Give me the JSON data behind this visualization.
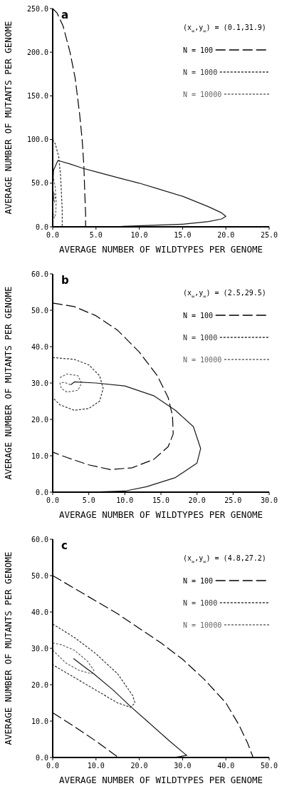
{
  "chart_data": [
    {
      "type": "line",
      "title": "a",
      "xlabel": "AVERAGE NUMBER OF WILDTYPES PER GENOME",
      "ylabel": "AVERAGE NUMBER OF MUTANTS PER GENOME",
      "annotations": [
        "(x$_{∞}$,y$_{∞}$) = (0.1,31.9)"
      ],
      "xlim": [
        0,
        25
      ],
      "ylim": [
        0,
        250
      ],
      "xticks": [
        {
          "value": 0,
          "label": "0.0"
        },
        {
          "value": 5,
          "label": "5.0"
        },
        {
          "value": 10,
          "label": "10.0"
        },
        {
          "value": 15,
          "label": "15.0"
        },
        {
          "value": 20,
          "label": "20.0"
        },
        {
          "value": 25,
          "label": "25.0"
        }
      ],
      "yticks": [
        {
          "value": 0,
          "label": "0.0"
        },
        {
          "value": 50,
          "label": "50.0"
        },
        {
          "value": 100,
          "label": "100.0"
        },
        {
          "value": 150,
          "label": "150.0"
        },
        {
          "value": 200,
          "label": "200.0"
        },
        {
          "value": 250,
          "label": "250.0"
        }
      ],
      "legend": "top right",
      "grid": false,
      "marker": "none",
      "series": [
        {
          "name": "N = 100",
          "color": "#000000",
          "line_style": "dashed",
          "x": [
            0,
            0.5,
            1.2,
            2,
            2.6,
            3.1,
            3.4,
            3.6,
            3.7,
            3.8,
            3.8
          ],
          "values": [
            250,
            245,
            230,
            200,
            170,
            130,
            100,
            70,
            40,
            15,
            0
          ]
        },
        {
          "name": "N = 1000",
          "color": "#333333",
          "line_style": "dotted",
          "x": [
            0,
            0.3,
            0.7,
            0.9,
            1,
            1.1,
            1.1
          ],
          "values": [
            100,
            95,
            80,
            60,
            40,
            20,
            0
          ]
        },
        {
          "name": "N = 10000",
          "color": "#666666",
          "line_style": "dotted",
          "x": [
            0.1,
            0.3,
            0.4,
            0.35,
            0.2,
            0.05,
            0,
            0.1,
            0.3,
            0.2,
            0.1
          ],
          "values": [
            55,
            45,
            30,
            15,
            10,
            15,
            30,
            40,
            35,
            28,
            32
          ]
        },
        {
          "color": "#1a1a1a",
          "line_style": "solid",
          "x": [
            0.1,
            0,
            0.1,
            0.6,
            2,
            3.5,
            5,
            8,
            10,
            12,
            15,
            18,
            19.5,
            20,
            19.5,
            18,
            15,
            12,
            8,
            4,
            0
          ],
          "values": [
            32,
            45,
            65,
            76,
            72,
            67,
            63,
            55,
            50,
            44,
            35,
            23,
            16,
            12,
            9,
            6,
            3,
            2,
            0.5,
            0,
            0
          ]
        }
      ]
    },
    {
      "type": "line",
      "title": "b",
      "xlabel": "AVERAGE NUMBER OF WILDTYPES PER GENOME",
      "ylabel": "AVERAGE NUMBER OF MUTANTS PER GENOME",
      "annotations": [
        "(x$_{∞}$,y$_{∞}$) = (2.5,29.5)"
      ],
      "xlim": [
        0,
        30
      ],
      "ylim": [
        0,
        60
      ],
      "xticks": [
        {
          "value": 0,
          "label": "0.0"
        },
        {
          "value": 5,
          "label": "5.0"
        },
        {
          "value": 10,
          "label": "10.0"
        },
        {
          "value": 15,
          "label": "15.0"
        },
        {
          "value": 20,
          "label": "20.0"
        },
        {
          "value": 25,
          "label": "25.0"
        },
        {
          "value": 30,
          "label": "30.0"
        }
      ],
      "yticks": [
        {
          "value": 0,
          "label": "0.0"
        },
        {
          "value": 10,
          "label": "10.0"
        },
        {
          "value": 20,
          "label": "20.0"
        },
        {
          "value": 30,
          "label": "30.0"
        },
        {
          "value": 40,
          "label": "40.0"
        },
        {
          "value": 50,
          "label": "50.0"
        },
        {
          "value": 60,
          "label": "60.0"
        }
      ],
      "legend": "top right",
      "grid": false,
      "marker": "none",
      "series": [
        {
          "name": "N = 100",
          "color": "#000000",
          "line_style": "dashed",
          "x": [
            0,
            3,
            6,
            9,
            12,
            14.5,
            16,
            16.6,
            16.7,
            16,
            14,
            11,
            8,
            5,
            2,
            0
          ],
          "values": [
            52,
            51,
            48.5,
            44.5,
            38.5,
            32,
            26,
            21,
            16,
            12.5,
            9,
            6.7,
            6.2,
            7.5,
            9.5,
            11
          ]
        },
        {
          "name": "N = 1000",
          "color": "#333333",
          "line_style": "dotted",
          "x": [
            0,
            3,
            5,
            6.5,
            7,
            6.5,
            5,
            3,
            1,
            0
          ],
          "values": [
            37,
            36.5,
            35,
            32,
            28.5,
            25,
            23,
            22.5,
            24,
            26
          ]
        },
        {
          "name": "N = 10000",
          "color": "#666666",
          "line_style": "dotted",
          "x": [
            1,
            2,
            3.5,
            4,
            3.5,
            2,
            1.2,
            1,
            1.6,
            2.5
          ],
          "values": [
            31.5,
            32.5,
            32,
            30,
            28,
            27.5,
            28.5,
            30,
            30.2,
            29.5
          ]
        },
        {
          "color": "#1a1a1a",
          "line_style": "solid",
          "x": [
            2.5,
            3,
            6,
            10,
            14,
            17,
            19.5,
            20.5,
            20,
            17,
            13,
            10,
            5,
            0
          ],
          "values": [
            29.5,
            30.3,
            30,
            29.2,
            26.5,
            22.5,
            18,
            12,
            8,
            4,
            1.5,
            0.3,
            0,
            0
          ]
        }
      ]
    },
    {
      "type": "line",
      "title": "c",
      "xlabel": "AVERAGE NUMBER OF WILDTYPES PER GENOME",
      "ylabel": "AVERAGE NUMBER OF MUTANTS PER GENOME",
      "annotations": [
        "(x$_{∞}$,y$_{∞}$) = (4.8,27.2)"
      ],
      "xlim": [
        0,
        50
      ],
      "ylim": [
        0,
        60
      ],
      "xticks": [
        {
          "value": 0,
          "label": "0.0"
        },
        {
          "value": 10,
          "label": "10.0"
        },
        {
          "value": 20,
          "label": "20.0"
        },
        {
          "value": 30,
          "label": "30.0"
        },
        {
          "value": 40,
          "label": "40.0"
        },
        {
          "value": 50,
          "label": "50.0"
        }
      ],
      "yticks": [
        {
          "value": 0,
          "label": "0.0"
        },
        {
          "value": 10,
          "label": "10.0"
        },
        {
          "value": 20,
          "label": "20.0"
        },
        {
          "value": 30,
          "label": "30.0"
        },
        {
          "value": 40,
          "label": "40.0"
        },
        {
          "value": 50,
          "label": "50.0"
        },
        {
          "value": 60,
          "label": "60.0"
        }
      ],
      "legend": "top right",
      "grid": false,
      "marker": "none",
      "series": [
        {
          "name": "N = 100",
          "color": "#000000",
          "line_style": "dashed",
          "x": [
            0,
            5,
            10,
            15,
            20,
            25,
            30,
            35,
            40,
            43,
            45,
            46.3,
            null,
            0,
            5,
            10,
            15.2
          ],
          "values": [
            50,
            46.5,
            43,
            39.5,
            35.5,
            31.5,
            27,
            21.5,
            15,
            9,
            4,
            0,
            null,
            12.3,
            8.5,
            4.5,
            0
          ]
        },
        {
          "name": "N = 1000",
          "color": "#333333",
          "line_style": "dotted",
          "x": [
            0,
            5,
            10,
            15,
            18.5,
            19,
            18,
            15,
            10,
            5,
            0
          ],
          "values": [
            36.7,
            33,
            28.5,
            23,
            17,
            15,
            13.8,
            15,
            18.5,
            22,
            25.5
          ]
        },
        {
          "name": "N = 10000",
          "color": "#666666",
          "line_style": "dotted",
          "x": [
            0,
            2,
            5,
            8,
            9.5,
            9,
            6,
            3,
            0
          ],
          "values": [
            31.5,
            31,
            29.5,
            26.5,
            24,
            23,
            24,
            26,
            29.5
          ]
        },
        {
          "color": "#1a1a1a",
          "line_style": "solid",
          "x": [
            4.8,
            7,
            9.5,
            14,
            18,
            22,
            27,
            30.5,
            31,
            28,
            20
          ],
          "values": [
            27.2,
            25.2,
            23,
            18.5,
            14,
            9.8,
            4.5,
            1,
            0.6,
            0,
            0
          ]
        }
      ]
    }
  ]
}
